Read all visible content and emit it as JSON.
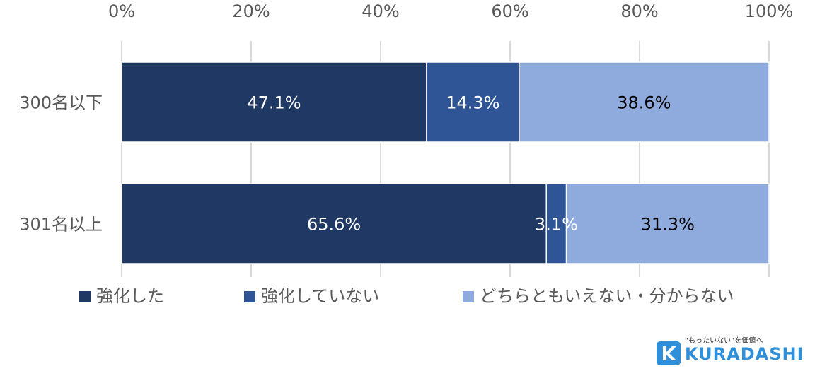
{
  "chart_data": {
    "type": "bar",
    "orientation": "horizontal",
    "stacked": true,
    "percent": true,
    "categories": [
      "300名以下",
      "301名以上"
    ],
    "series": [
      {
        "name": "強化した",
        "values": [
          47.1,
          65.6
        ],
        "color": "#203864",
        "label_color": "#ffffff"
      },
      {
        "name": "強化していない",
        "values": [
          14.3,
          3.1
        ],
        "color": "#2f5597",
        "label_color": "#ffffff"
      },
      {
        "name": "どちらともいえない・分からない",
        "values": [
          38.6,
          31.3
        ],
        "color": "#8faadc",
        "label_color": "#000000"
      }
    ],
    "data_labels": [
      [
        "47.1%",
        "14.3%",
        "38.6%"
      ],
      [
        "65.6%",
        "3.1%",
        "31.3%"
      ]
    ],
    "x_ticks": [
      "0%",
      "20%",
      "40%",
      "60%",
      "80%",
      "100%"
    ],
    "xlim": [
      0,
      100
    ],
    "axis_position": "top",
    "grid": true,
    "legend_position": "bottom",
    "title": "",
    "xlabel": "",
    "ylabel": ""
  },
  "branding": {
    "tagline": "“もったいない”を価値へ",
    "wordmark": "KURADASHI",
    "mark_color": "#2f8fd8"
  }
}
